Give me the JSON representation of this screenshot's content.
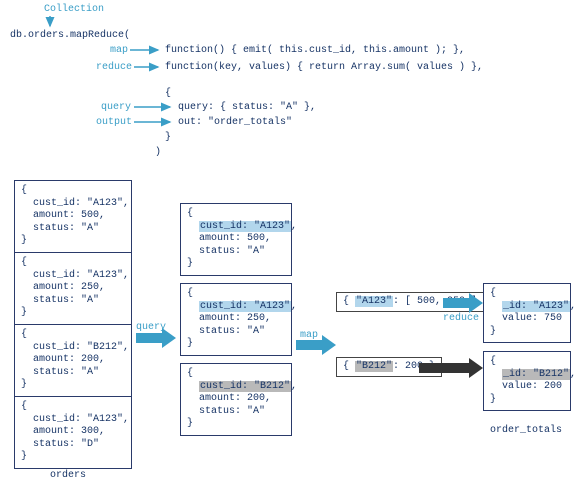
{
  "colors": {
    "text": "#163365",
    "label": "#3a9ec7",
    "hl_blue": "#b2d6ec",
    "hl_gray": "#b9b9b9",
    "arrow_blue": "#3a9ec7",
    "arrow_dark": "#333333",
    "box_border": "#2a3a6a"
  },
  "code": {
    "collection_label": "Collection",
    "call": "db.orders.mapReduce(",
    "map_label": "map",
    "map_fn": "function() { emit( this.cust_id, this.amount ); },",
    "reduce_label": "reduce",
    "reduce_fn": "function(key, values) { return Array.sum( values ) },",
    "open_brace": "{",
    "query_label": "query",
    "query_line": "query: { status: \"A\" },",
    "output_label": "output",
    "out_line": "out: \"order_totals\"",
    "close_brace": "}",
    "close_paren": ")"
  },
  "docs": {
    "orders": [
      {
        "cust_id": "\"A123\"",
        "amount": "500",
        "status": "\"A\""
      },
      {
        "cust_id": "\"A123\"",
        "amount": "250",
        "status": "\"A\""
      },
      {
        "cust_id": "\"B212\"",
        "amount": "200",
        "status": "\"A\""
      },
      {
        "cust_id": "\"A123\"",
        "amount": "300",
        "status": "\"D\""
      }
    ],
    "orders_title": "orders",
    "filtered": [
      {
        "cust_id": "\"A123\"",
        "amount": "500",
        "status": "\"A\"",
        "hl": "blue"
      },
      {
        "cust_id": "\"A123\"",
        "amount": "250",
        "status": "\"A\"",
        "hl": "blue"
      },
      {
        "cust_id": "\"B212\"",
        "amount": "200",
        "status": "\"A\"",
        "hl": "gray"
      }
    ],
    "pairs": [
      {
        "key": "\"A123\"",
        "val": "[ 500, 250 ]",
        "hl": "blue"
      },
      {
        "key": "\"B212\"",
        "val": "200",
        "hl": "gray"
      }
    ],
    "results": [
      {
        "id": "\"A123\"",
        "value": "750",
        "hl": "blue"
      },
      {
        "id": "\"B212\"",
        "value": "200",
        "hl": "gray"
      }
    ],
    "results_title": "order_totals"
  },
  "flow": {
    "query": "query",
    "map": "map",
    "reduce": "reduce"
  }
}
